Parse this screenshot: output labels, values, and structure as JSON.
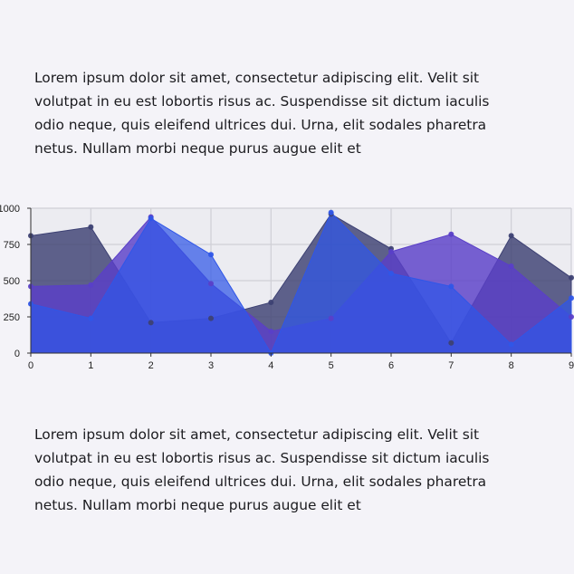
{
  "content": {
    "paragraph_top": "Lorem ipsum dolor sit amet, consectetur adipiscing elit. Velit sit volutpat in eu est lobortis risus ac. Suspendisse sit dictum iaculis odio neque, quis eleifend ultrices dui. Urna, elit sodales pharetra netus. Nullam morbi neque purus augue elit et",
    "paragraph_bottom": "Lorem ipsum dolor sit amet, consectetur adipiscing elit. Velit sit volutpat in eu est lobortis risus ac. Suspendisse sit dictum iaculis odio neque, quis eleifend ultrices dui. Urna, elit sodales pharetra netus. Nullam morbi neque purus augue elit et"
  },
  "chart_data": {
    "type": "area",
    "x": [
      0,
      1,
      2,
      3,
      4,
      5,
      6,
      7,
      8,
      9
    ],
    "x_ticks": [
      "0",
      "1",
      "2",
      "3",
      "4",
      "5",
      "6",
      "7",
      "8",
      "9"
    ],
    "y_ticks": [
      "0",
      "250",
      "500",
      "750",
      "1000"
    ],
    "ylim": [
      0,
      1000
    ],
    "grid": true,
    "series": [
      {
        "color": "#3d4173",
        "opacity": 0.82,
        "values": [
          810,
          870,
          210,
          240,
          350,
          960,
          720,
          70,
          810,
          520
        ]
      },
      {
        "color": "#5a3fc8",
        "opacity": 0.82,
        "values": [
          460,
          470,
          940,
          480,
          150,
          240,
          700,
          820,
          600,
          250
        ]
      },
      {
        "color": "#2f56e8",
        "opacity": 0.72,
        "values": [
          340,
          240,
          930,
          680,
          0,
          970,
          550,
          460,
          60,
          380
        ]
      }
    ]
  }
}
